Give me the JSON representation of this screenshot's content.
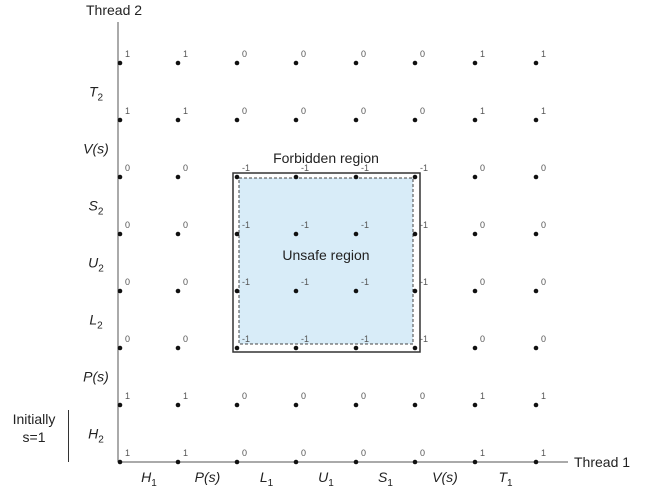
{
  "axes": {
    "y_title": "Thread 2",
    "x_title": "Thread 1"
  },
  "x_ticks": [
    {
      "base": "H",
      "sub": "1"
    },
    {
      "base": "P(s)",
      "sub": ""
    },
    {
      "base": "L",
      "sub": "1"
    },
    {
      "base": "U",
      "sub": "1"
    },
    {
      "base": "S",
      "sub": "1"
    },
    {
      "base": "V(s)",
      "sub": ""
    },
    {
      "base": "T",
      "sub": "1"
    }
  ],
  "y_ticks": [
    {
      "base": "H",
      "sub": "2"
    },
    {
      "base": "P(s)",
      "sub": ""
    },
    {
      "base": "L",
      "sub": "2"
    },
    {
      "base": "U",
      "sub": "2"
    },
    {
      "base": "S",
      "sub": "2"
    },
    {
      "base": "V(s)",
      "sub": ""
    },
    {
      "base": "T",
      "sub": "2"
    }
  ],
  "grid_values": [
    [
      "1",
      "1",
      "0",
      "0",
      "0",
      "0",
      "1",
      "1"
    ],
    [
      "1",
      "1",
      "0",
      "0",
      "0",
      "0",
      "1",
      "1"
    ],
    [
      "0",
      "0",
      "-1",
      "-1",
      "-1",
      "-1",
      "0",
      "0"
    ],
    [
      "0",
      "0",
      "-1",
      "-1",
      "-1",
      "-1",
      "0",
      "0"
    ],
    [
      "0",
      "0",
      "-1",
      "-1",
      "-1",
      "-1",
      "0",
      "0"
    ],
    [
      "0",
      "0",
      "-1",
      "-1",
      "-1",
      "-1",
      "0",
      "0"
    ],
    [
      "1",
      "1",
      "0",
      "0",
      "0",
      "0",
      "1",
      "1"
    ],
    [
      "1",
      "1",
      "0",
      "0",
      "0",
      "0",
      "1",
      "1"
    ]
  ],
  "forbidden_region": {
    "label": "Forbidden region"
  },
  "unsafe_region": {
    "label": "Unsafe region",
    "fill_color": "#d8ecf8"
  },
  "initial_state": {
    "line1": "Initially",
    "line2": "s=1"
  }
}
